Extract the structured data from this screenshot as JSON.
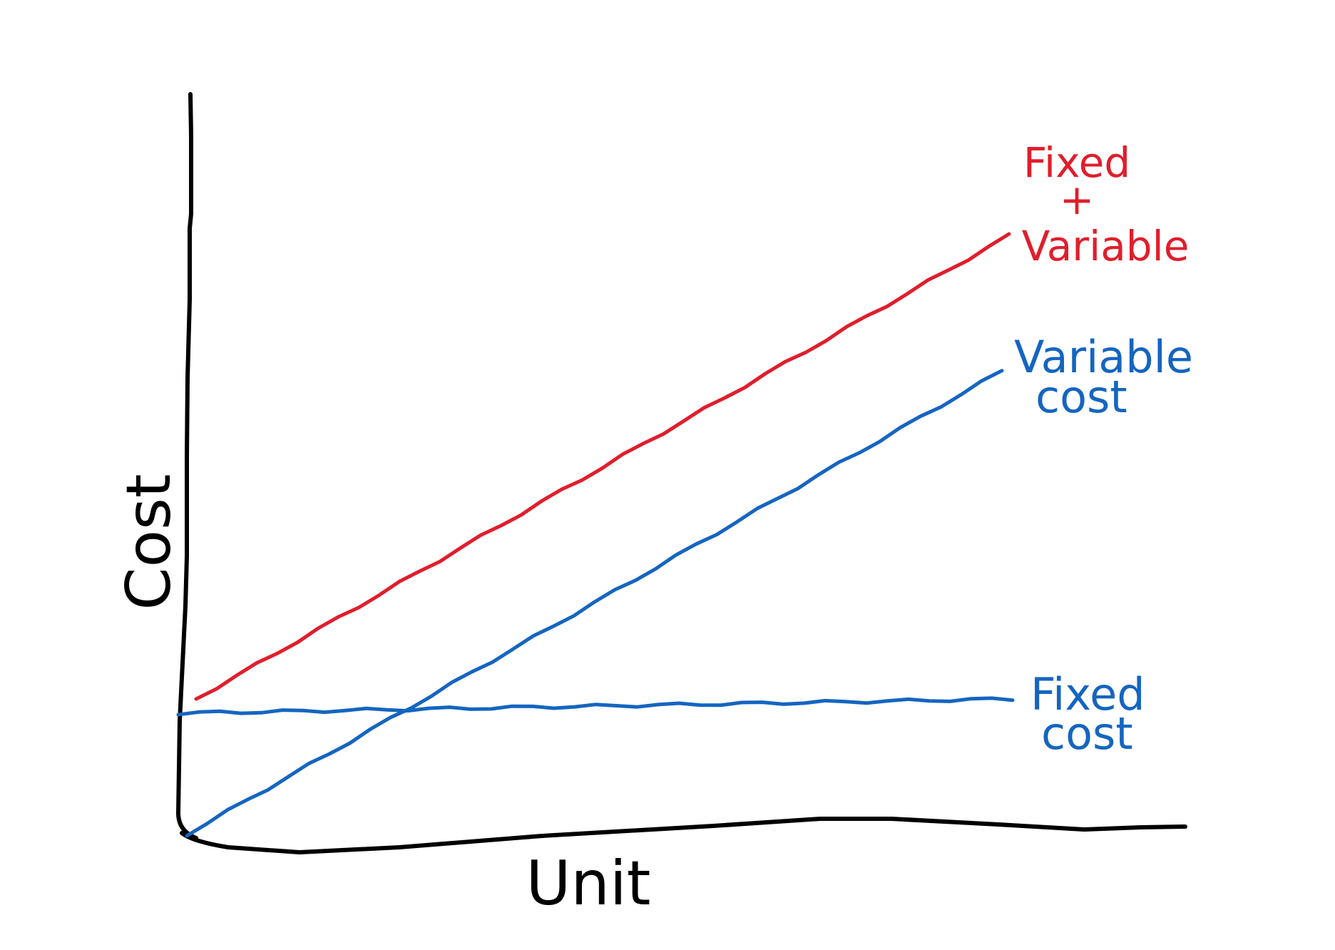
{
  "chart_data": {
    "type": "line",
    "title": "",
    "xlabel": "Unit",
    "ylabel": "Cost",
    "xlim": [
      0,
      10
    ],
    "ylim": [
      0,
      10
    ],
    "grid": false,
    "legend": "labels at line ends (right)",
    "axis_color": "#000000",
    "x": [
      0,
      10
    ],
    "series": [
      {
        "key": "total",
        "label_lines": [
          "Fixed",
          "+",
          "Variable"
        ],
        "color": "#e01e2c",
        "values": [
          1.9,
          8.4
        ]
      },
      {
        "key": "variable",
        "label_lines": [
          "Variable",
          "cost"
        ],
        "color": "#1565c0",
        "values": [
          0,
          6.5
        ]
      },
      {
        "key": "fixed",
        "label_lines": [
          "Fixed",
          "cost"
        ],
        "color": "#1565c0",
        "values": [
          1.7,
          1.9
        ]
      }
    ]
  }
}
